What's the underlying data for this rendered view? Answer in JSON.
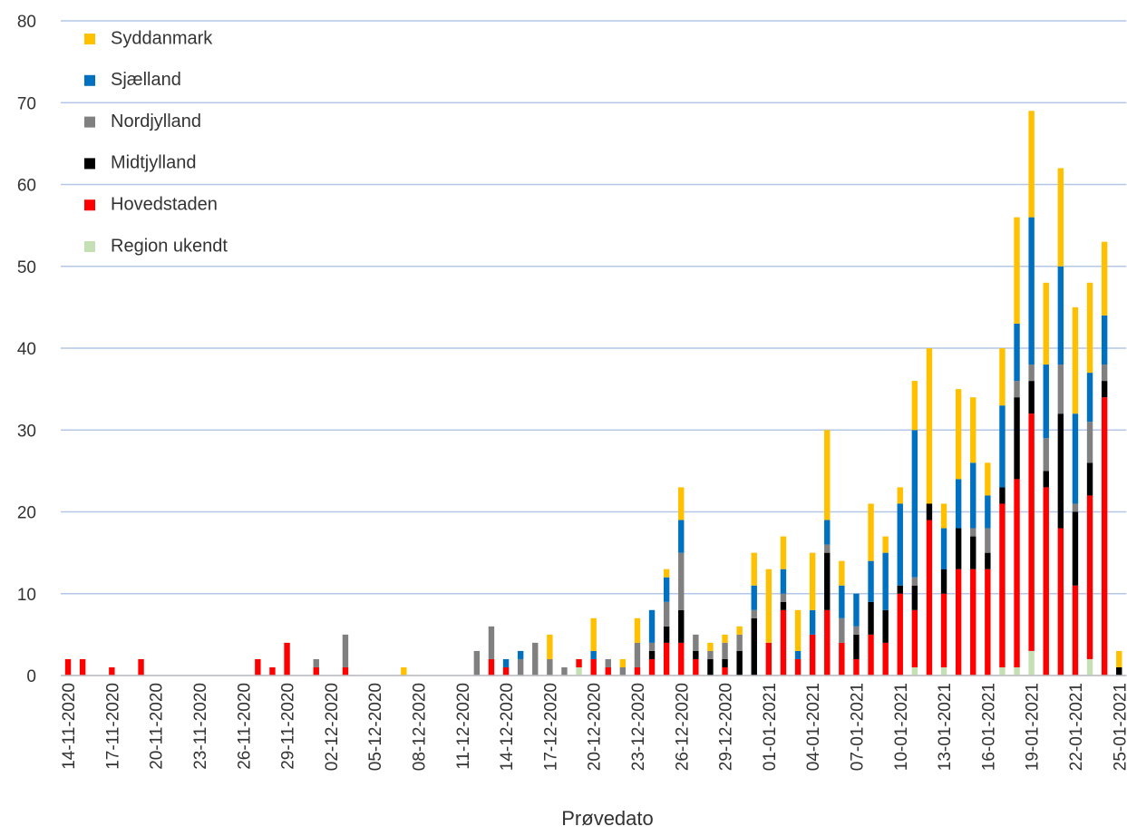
{
  "chart_data": {
    "type": "stacked_bar",
    "x_label": "Prøvedato",
    "categories": [
      "14-11-2020",
      null,
      null,
      "17-11-2020",
      null,
      null,
      "20-11-2020",
      null,
      null,
      "23-11-2020",
      null,
      null,
      "26-11-2020",
      null,
      null,
      "29-11-2020",
      null,
      null,
      "02-12-2020",
      null,
      null,
      "05-12-2020",
      null,
      null,
      "08-12-2020",
      null,
      null,
      "11-12-2020",
      null,
      null,
      "14-12-2020",
      null,
      null,
      "17-12-2020",
      null,
      null,
      "20-12-2020",
      null,
      null,
      "23-12-2020",
      null,
      null,
      "26-12-2020",
      null,
      null,
      "29-12-2020",
      null,
      null,
      "01-01-2021",
      null,
      null,
      "04-01-2021",
      null,
      null,
      "07-01-2021",
      null,
      null,
      "10-01-2021",
      null,
      null,
      "13-01-2021",
      null,
      null,
      "16-01-2021",
      null,
      null,
      "19-01-2021",
      null,
      null,
      "22-01-2021",
      null,
      null,
      "25-01-2021"
    ],
    "series": [
      {
        "name": "Region ukendt",
        "color": "#c5e0b4",
        "values": [
          0,
          0,
          0,
          0,
          0,
          0,
          0,
          0,
          0,
          0,
          0,
          0,
          0,
          0,
          0,
          0,
          0,
          0,
          0,
          0,
          0,
          0,
          0,
          0,
          0,
          0,
          0,
          0,
          0,
          0,
          0,
          0,
          0,
          0,
          0,
          1,
          0,
          0,
          0,
          0,
          0,
          0,
          0,
          0,
          0,
          0,
          0,
          0,
          0,
          0,
          0,
          0,
          0,
          0,
          0,
          0,
          0,
          0,
          1,
          0,
          1,
          0,
          0,
          0,
          1,
          1,
          3,
          0,
          0,
          0,
          2,
          0,
          0
        ]
      },
      {
        "name": "Hovedstaden",
        "color": "#ff0000",
        "values": [
          2,
          2,
          0,
          1,
          0,
          2,
          0,
          0,
          0,
          0,
          0,
          0,
          0,
          2,
          1,
          4,
          0,
          1,
          0,
          1,
          0,
          0,
          0,
          0,
          0,
          0,
          0,
          0,
          0,
          2,
          1,
          0,
          0,
          0,
          0,
          1,
          2,
          1,
          0,
          1,
          2,
          4,
          4,
          2,
          0,
          1,
          0,
          0,
          4,
          8,
          2,
          5,
          8,
          4,
          2,
          5,
          4,
          10,
          7,
          19,
          9,
          13,
          13,
          13,
          20,
          23,
          29,
          23,
          18,
          11,
          20,
          34,
          0
        ]
      },
      {
        "name": "Midtjylland",
        "color": "#000000",
        "values": [
          0,
          0,
          0,
          0,
          0,
          0,
          0,
          0,
          0,
          0,
          0,
          0,
          0,
          0,
          0,
          0,
          0,
          0,
          0,
          0,
          0,
          0,
          0,
          0,
          0,
          0,
          0,
          0,
          0,
          0,
          0,
          0,
          0,
          0,
          0,
          0,
          0,
          0,
          0,
          0,
          1,
          2,
          4,
          1,
          2,
          1,
          3,
          7,
          0,
          1,
          0,
          0,
          7,
          0,
          3,
          4,
          4,
          1,
          3,
          2,
          3,
          5,
          4,
          2,
          2,
          10,
          4,
          2,
          14,
          9,
          4,
          2,
          1
        ]
      },
      {
        "name": "Nordjylland",
        "color": "#808080",
        "values": [
          0,
          0,
          0,
          0,
          0,
          0,
          0,
          0,
          0,
          0,
          0,
          0,
          0,
          0,
          0,
          0,
          0,
          1,
          0,
          4,
          0,
          0,
          0,
          0,
          0,
          0,
          0,
          0,
          3,
          4,
          0,
          2,
          4,
          2,
          1,
          0,
          0,
          1,
          1,
          3,
          1,
          3,
          7,
          2,
          1,
          2,
          2,
          1,
          0,
          1,
          0,
          0,
          1,
          3,
          1,
          0,
          0,
          0,
          1,
          0,
          0,
          0,
          1,
          3,
          0,
          2,
          2,
          4,
          6,
          1,
          5,
          2,
          0
        ]
      },
      {
        "name": "Sjælland",
        "color": "#0070c0",
        "values": [
          0,
          0,
          0,
          0,
          0,
          0,
          0,
          0,
          0,
          0,
          0,
          0,
          0,
          0,
          0,
          0,
          0,
          0,
          0,
          0,
          0,
          0,
          0,
          0,
          0,
          0,
          0,
          0,
          0,
          0,
          1,
          1,
          0,
          0,
          0,
          0,
          1,
          0,
          0,
          0,
          4,
          3,
          4,
          0,
          0,
          0,
          0,
          3,
          0,
          3,
          1,
          3,
          3,
          4,
          4,
          5,
          7,
          10,
          18,
          0,
          5,
          6,
          8,
          4,
          10,
          7,
          18,
          9,
          12,
          11,
          6,
          6,
          0
        ]
      },
      {
        "name": "Syddanmark",
        "color": "#ffc000",
        "values": [
          0,
          0,
          0,
          0,
          0,
          0,
          0,
          0,
          0,
          0,
          0,
          0,
          0,
          0,
          0,
          0,
          0,
          0,
          0,
          0,
          0,
          0,
          0,
          1,
          0,
          0,
          0,
          0,
          0,
          0,
          0,
          0,
          0,
          3,
          0,
          0,
          4,
          0,
          1,
          3,
          0,
          1,
          4,
          0,
          1,
          1,
          1,
          4,
          9,
          4,
          5,
          7,
          11,
          3,
          0,
          7,
          2,
          2,
          6,
          19,
          3,
          11,
          8,
          4,
          7,
          13,
          13,
          10,
          12,
          13,
          11,
          9,
          2
        ]
      }
    ],
    "ylim": [
      0,
      80
    ],
    "yticks": [
      0,
      10,
      20,
      30,
      40,
      50,
      60,
      70,
      80
    ],
    "grid": true,
    "grid_color": "#b4c7e7",
    "legend": "top-left"
  }
}
